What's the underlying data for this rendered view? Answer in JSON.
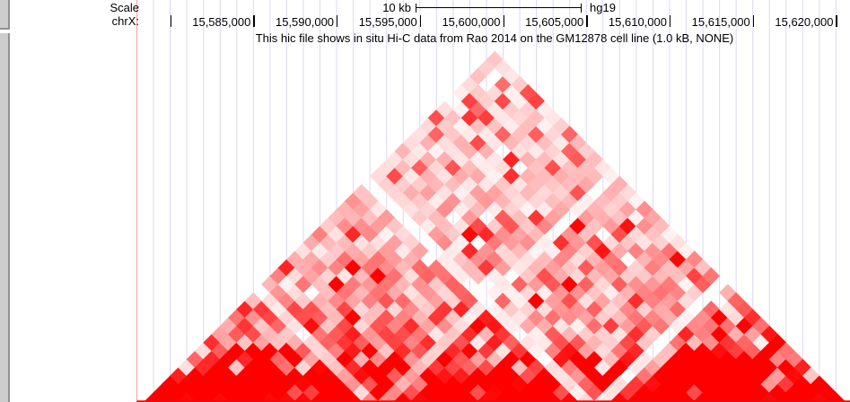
{
  "ruler": {
    "scale_label": "Scale",
    "assembly": "hg19",
    "chrom_label": "chrX:"
  },
  "chart_data": {
    "type": "heatmap",
    "title": "This hic file shows in situ Hi-C data from Rao 2014 on the GM12878 cell line (1.0 kB, NONE)",
    "region": {
      "chrom": "chrX",
      "window_start_bp": 15578000,
      "window_end_bp": 15621000,
      "bin_size_bp": 1000,
      "bins": 43
    },
    "scale_bar": {
      "label": "10 kb",
      "kb": 10
    },
    "ticks": [
      {
        "bp": 15580000,
        "label": ""
      },
      {
        "bp": 15585000,
        "label": "15,585,000"
      },
      {
        "bp": 15590000,
        "label": "15,590,000"
      },
      {
        "bp": 15595000,
        "label": "15,595,000"
      },
      {
        "bp": 15600000,
        "label": "15,600,000"
      },
      {
        "bp": 15605000,
        "label": "15,605,000"
      },
      {
        "bp": 15610000,
        "label": "15,610,000"
      },
      {
        "bp": 15615000,
        "label": "15,615,000"
      },
      {
        "bp": 15620000,
        "label": "15,620,000"
      }
    ],
    "model": {
      "seed": 20140419,
      "tad_starts": [
        0,
        14,
        28
      ],
      "depleted_bins": {
        "14": 0.2,
        "27": 0.08,
        "28": 0.5
      },
      "same_tad_coef": 0.85,
      "cross_tad_coef": 0.72,
      "right_tad_boost": 1.25,
      "decay_bins": 20,
      "proximal_bins": 6.5,
      "spike_p": 0.12,
      "hole_p": 0.1
    },
    "palette": {
      "min_color": "#ffffff",
      "max_color": "#ff0000"
    }
  },
  "colors": {
    "gridline": "#d9d9f3",
    "window_left_edge": "#ffa9a9",
    "sidebar_fill": "#cdcdcd",
    "sidebar_border": "#919191",
    "bottom_edge": "#ea0b0b",
    "tick": "#000000",
    "text": "#000000"
  }
}
